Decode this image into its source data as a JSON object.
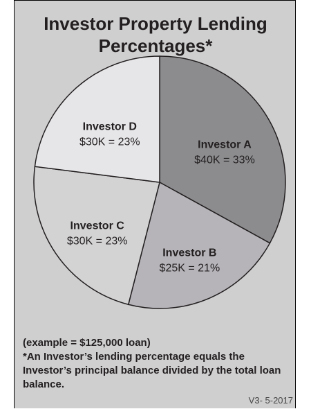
{
  "chart_data": {
    "type": "pie",
    "title": "Investor Property Lending Percentages*",
    "categories": [
      "Investor A",
      "Investor B",
      "Investor C",
      "Investor D"
    ],
    "values": [
      33,
      21,
      23,
      23
    ],
    "value_labels": [
      "$40K = 33%",
      "$25K = 21%",
      "$30K = 23%",
      "$30K = 23%"
    ],
    "colors": [
      "#8c8c8e",
      "#b6b4b9",
      "#d3d3d4",
      "#e6e6e8"
    ],
    "notes": [
      "(example = $125,000 loan)",
      "*An Investor’s lending percentage equals the Investor’s principal balance divided by the total loan balance."
    ],
    "version": "V3- 5-2017"
  }
}
